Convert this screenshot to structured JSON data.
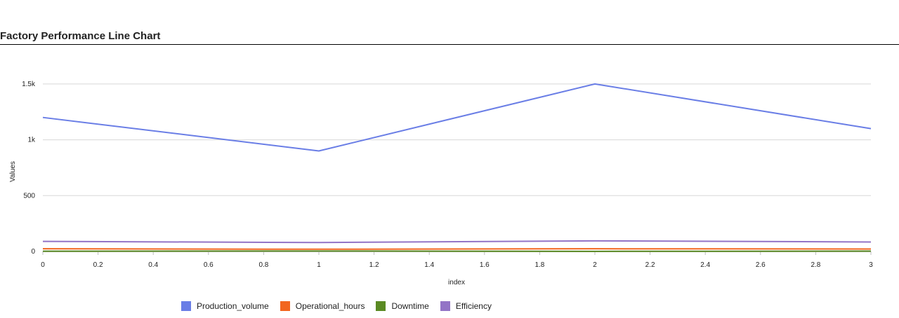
{
  "chart_data": {
    "type": "line",
    "title": "Factory Performance Line Chart",
    "xlabel": "index",
    "ylabel": "Values",
    "x": [
      0,
      1,
      2,
      3
    ],
    "xlim": [
      0,
      3
    ],
    "ylim": [
      0,
      1750
    ],
    "x_ticks": [
      0,
      0.2,
      0.4,
      0.6,
      0.8,
      1,
      1.2,
      1.4,
      1.6,
      1.8,
      2,
      2.2,
      2.4,
      2.6,
      2.8,
      3
    ],
    "x_tick_labels": [
      "0",
      "0.2",
      "0.4",
      "0.6",
      "0.8",
      "1",
      "1.2",
      "1.4",
      "1.6",
      "1.8",
      "2",
      "2.2",
      "2.4",
      "2.6",
      "2.8",
      "3"
    ],
    "y_ticks": [
      0,
      500,
      1000,
      1500
    ],
    "y_tick_labels": [
      "0",
      "500",
      "1k",
      "1.5k"
    ],
    "grid": true,
    "legend_position": "bottom",
    "series": [
      {
        "name": "Production_volume",
        "color": "#6a7ee6",
        "values": [
          1200,
          900,
          1500,
          1100
        ]
      },
      {
        "name": "Operational_hours",
        "color": "#f2661f",
        "values": [
          24,
          20,
          24,
          22
        ]
      },
      {
        "name": "Downtime",
        "color": "#5a8a23",
        "values": [
          2,
          4,
          1,
          3
        ]
      },
      {
        "name": "Efficiency",
        "color": "#9374c6",
        "values": [
          90,
          80,
          95,
          85
        ]
      }
    ]
  }
}
